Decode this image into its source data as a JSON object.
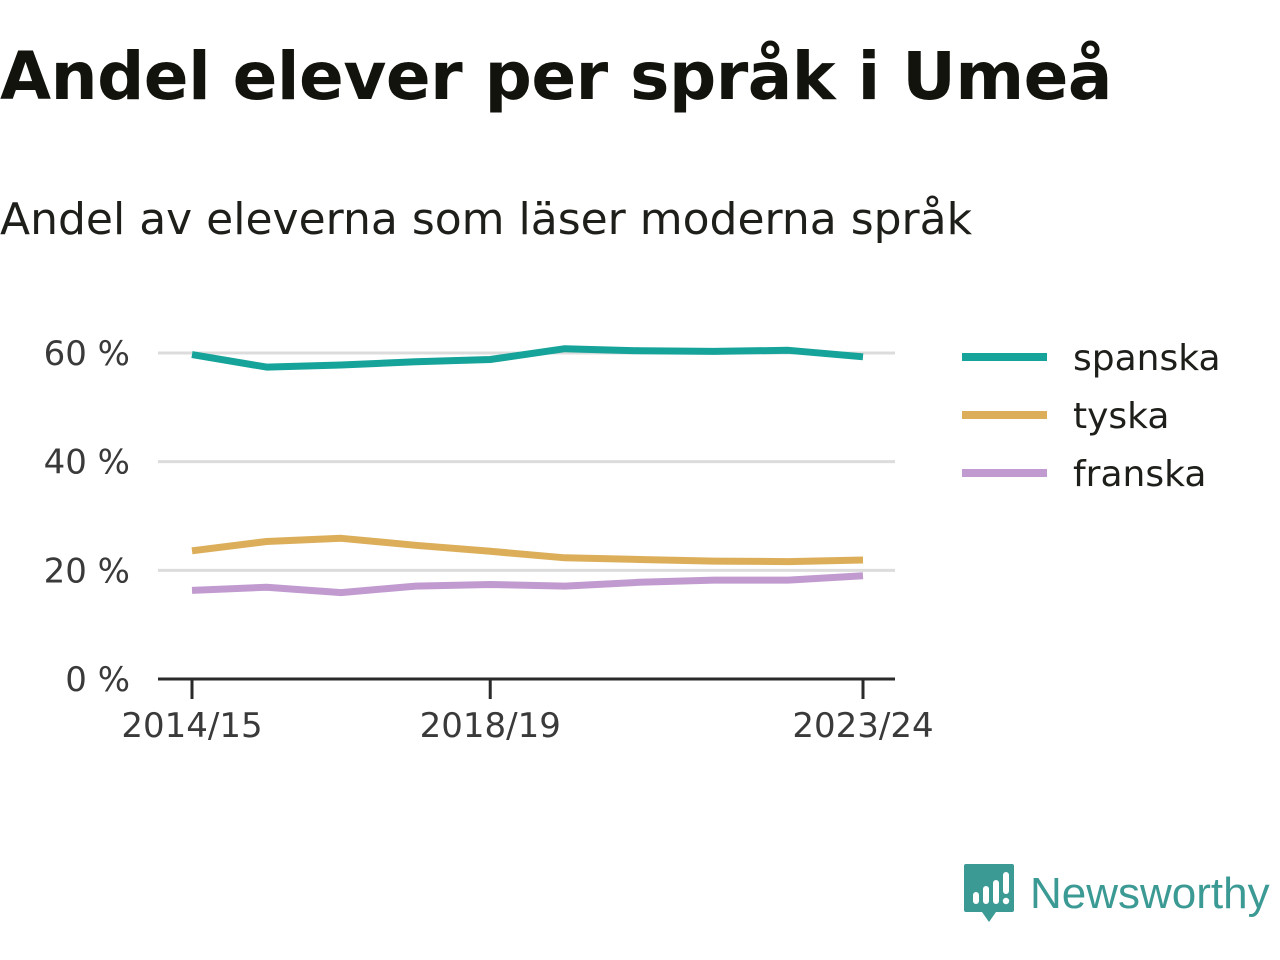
{
  "title": "Andel elever per språk i Umeå",
  "subtitle": "Andel av eleverna som läser moderna språk",
  "brand": {
    "name": "Newsworthy",
    "icon": "newsworthy-logo-icon",
    "color": "#3c9a95"
  },
  "chart_data": {
    "type": "line",
    "x": [
      "2014/15",
      "2015/16",
      "2016/17",
      "2017/18",
      "2018/19",
      "2019/20",
      "2020/21",
      "2021/22",
      "2022/23",
      "2023/24"
    ],
    "x_tick_labels": [
      "2014/15",
      "2018/19",
      "2023/24"
    ],
    "y_ticks": [
      0,
      20,
      40,
      60
    ],
    "y_tick_labels": [
      "0 %",
      "20 %",
      "40 %",
      "60 %"
    ],
    "ylim": [
      0,
      65
    ],
    "grid": true,
    "legend_position": "right",
    "series": [
      {
        "name": "spanska",
        "color": "#15a39a",
        "values": [
          59.7,
          57.4,
          57.8,
          58.4,
          58.8,
          60.8,
          60.4,
          60.3,
          60.5,
          59.3
        ]
      },
      {
        "name": "tyska",
        "color": "#dcae5a",
        "values": [
          23.6,
          25.3,
          25.9,
          24.6,
          23.5,
          22.3,
          22.0,
          21.7,
          21.6,
          21.9
        ]
      },
      {
        "name": "franska",
        "color": "#c19bcf",
        "values": [
          16.3,
          16.9,
          15.9,
          17.1,
          17.4,
          17.1,
          17.8,
          18.2,
          18.2,
          19.0
        ]
      }
    ]
  }
}
